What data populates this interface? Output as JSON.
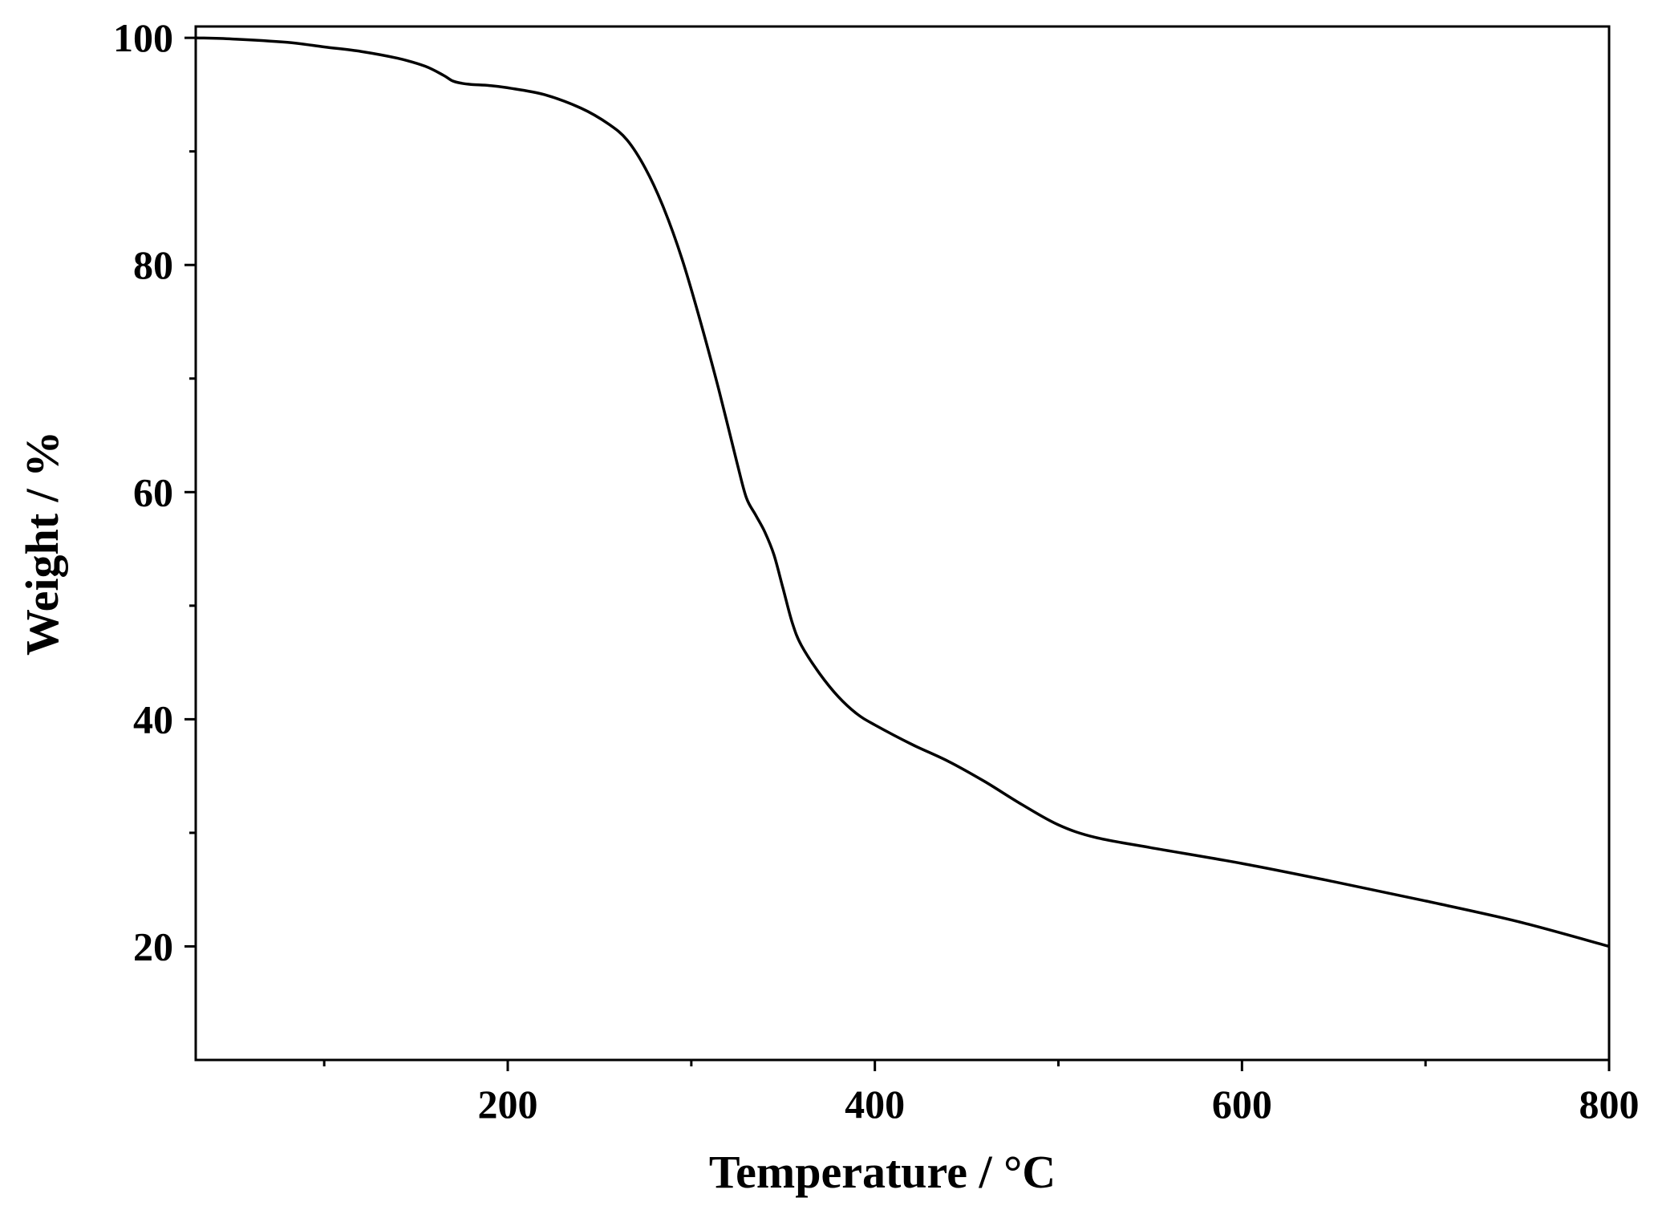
{
  "chart_data": {
    "type": "line",
    "title": "",
    "xlabel": "Temperature  / °C",
    "ylabel": "Weight / %",
    "xlim": [
      30,
      800
    ],
    "ylim": [
      10,
      101
    ],
    "x_ticks": [
      200,
      400,
      600,
      800
    ],
    "x_minor_ticks": [
      100,
      300,
      500,
      700
    ],
    "y_ticks": [
      20,
      40,
      60,
      80,
      100
    ],
    "y_minor_ticks": [
      30,
      50,
      70,
      90
    ],
    "x_tick_labels": [
      "200",
      "400",
      "600",
      "800"
    ],
    "y_tick_labels": [
      "20",
      "40",
      "60",
      "80",
      "100"
    ],
    "grid": false,
    "line_color": "#000000",
    "series": [
      {
        "x": [
          30,
          50,
          80,
          100,
          120,
          140,
          155,
          165,
          170,
          175,
          180,
          190,
          200,
          220,
          240,
          255,
          265,
          275,
          285,
          295,
          305,
          315,
          325,
          330,
          335,
          340,
          345,
          350,
          355,
          360,
          370,
          380,
          390,
          400,
          420,
          440,
          460,
          480,
          500,
          520,
          550,
          600,
          650,
          700,
          750,
          800
        ],
        "y": [
          100,
          99.9,
          99.6,
          99.2,
          98.8,
          98.2,
          97.5,
          96.7,
          96.2,
          96.0,
          95.9,
          95.8,
          95.6,
          95.0,
          93.8,
          92.4,
          91.0,
          88.5,
          85.0,
          80.5,
          75.0,
          69.0,
          62.5,
          59.5,
          58.0,
          56.5,
          54.5,
          51.5,
          48.5,
          46.5,
          44.0,
          42.0,
          40.5,
          39.5,
          37.8,
          36.3,
          34.5,
          32.5,
          30.7,
          29.6,
          28.7,
          27.3,
          25.7,
          24.0,
          22.2,
          20.0
        ]
      }
    ]
  }
}
